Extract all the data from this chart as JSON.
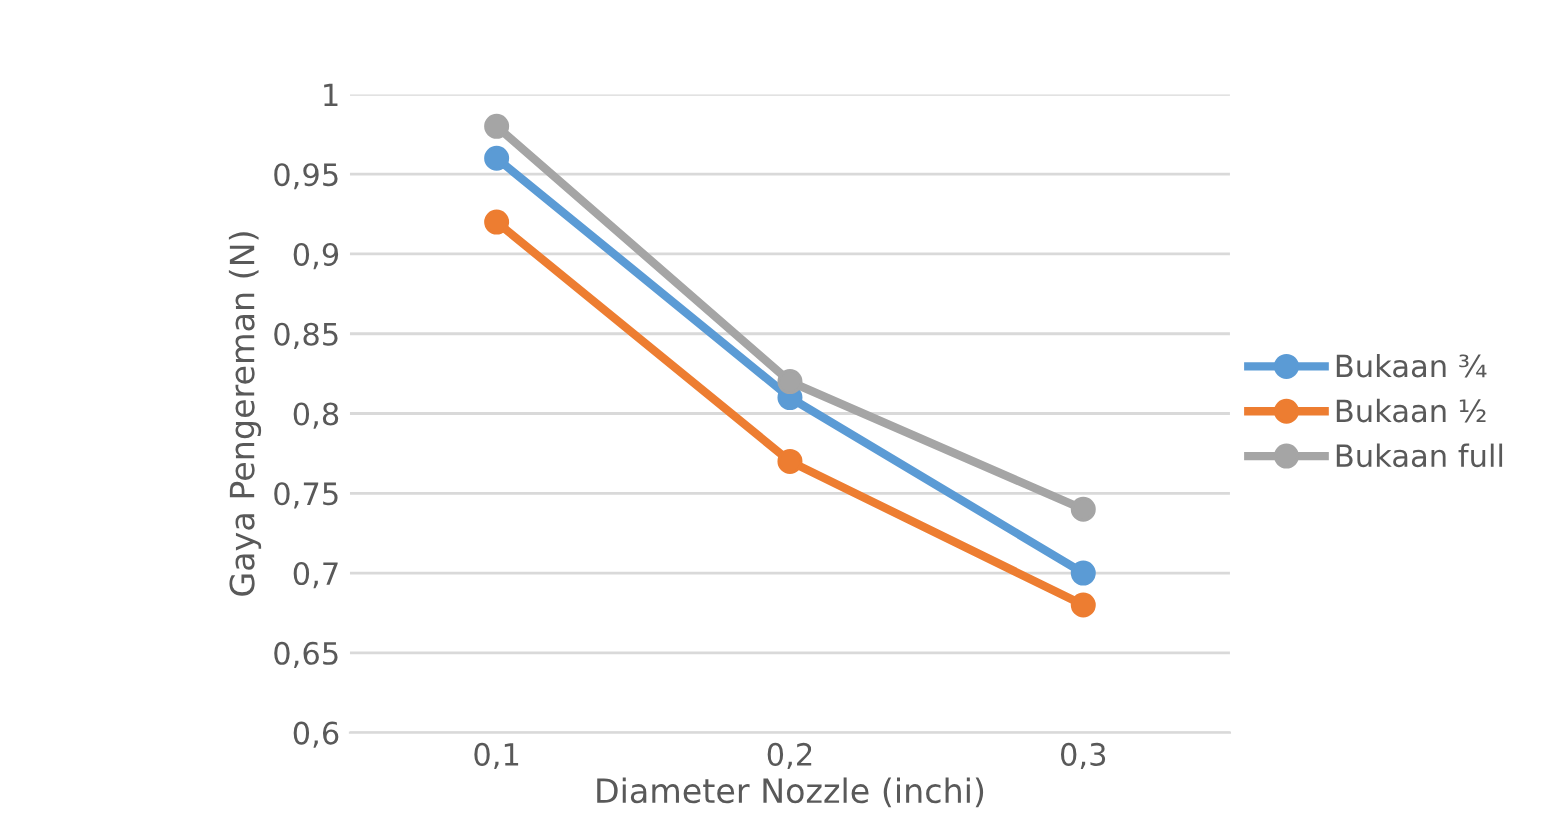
{
  "chart_data": {
    "type": "line",
    "xlabel": "Diameter Nozzle (inchi)",
    "ylabel": "Gaya Pengereman (N)",
    "categories": [
      "0,1",
      "0,2",
      "0,3"
    ],
    "series": [
      {
        "name": "Bukaan ¾",
        "color": "#5b9bd5",
        "values": [
          0.96,
          0.81,
          0.7
        ]
      },
      {
        "name": "Bukaan ½",
        "color": "#ed7d31",
        "values": [
          0.92,
          0.77,
          0.68
        ]
      },
      {
        "name": "Bukaan full",
        "color": "#a5a5a5",
        "values": [
          0.98,
          0.82,
          0.74
        ]
      }
    ],
    "ylim": [
      0.6,
      1
    ],
    "yticks": [
      {
        "value": 0.6,
        "label": "0,6"
      },
      {
        "value": 0.65,
        "label": "0,65"
      },
      {
        "value": 0.7,
        "label": "0,7"
      },
      {
        "value": 0.75,
        "label": "0,75"
      },
      {
        "value": 0.8,
        "label": "0,8"
      },
      {
        "value": 0.85,
        "label": "0,85"
      },
      {
        "value": 0.9,
        "label": "0,9"
      },
      {
        "value": 0.95,
        "label": "0,95"
      },
      {
        "value": 1,
        "label": "1"
      }
    ],
    "grid": "y",
    "legend": "right",
    "marker": "circle",
    "line_style": "solid"
  }
}
